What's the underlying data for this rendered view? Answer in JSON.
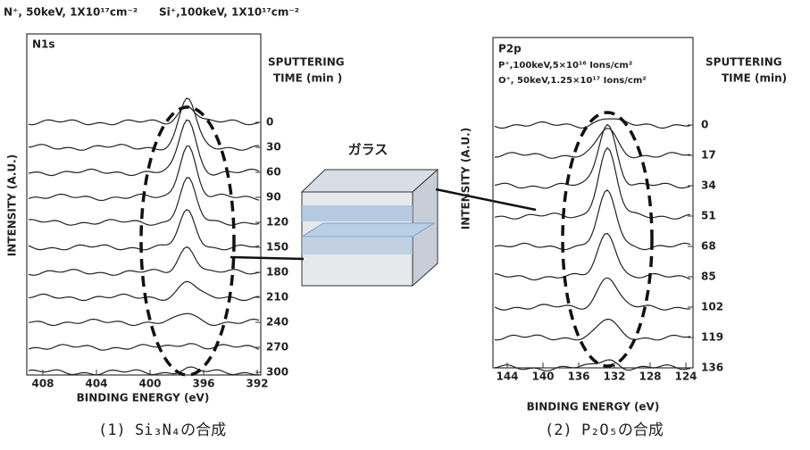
{
  "left": {
    "header": [
      "N⁺, 50keV, 1X10¹⁷cm⁻²",
      "Si⁺,100keV, 1X10¹⁷cm⁻²"
    ],
    "label": "N1s",
    "time_title": [
      "SPUTTERING",
      "TIME (min )"
    ],
    "y_label": "INTENSITY (A.U.)",
    "times": [
      "0",
      "30",
      "60",
      "90",
      "120",
      "150",
      "180",
      "210",
      "240",
      "270",
      "300"
    ],
    "x_ticks": [
      "408",
      "404",
      "400",
      "396",
      "392"
    ],
    "x_label": "BINDING ENERGY (eV)",
    "caption": "(1)  Si₃N₄の合成"
  },
  "middle": {
    "label": "ガラス"
  },
  "right": {
    "label": "P2p",
    "conditions": [
      "P⁺,100keV,5×10¹⁶ Ions/cm²",
      "O⁺, 50keV,1.25×10¹⁷ Ions/cm²"
    ],
    "time_title": [
      "SPUTTERING",
      "TIME (min)"
    ],
    "y_label": "INTENSITY (A.U.)",
    "times": [
      "0",
      "17",
      "34",
      "51",
      "68",
      "85",
      "102",
      "119",
      "136"
    ],
    "x_ticks": [
      "144",
      "140",
      "136",
      "132",
      "128",
      "124"
    ],
    "x_label": "BINDING ENERGY (eV)",
    "caption": "(2)  P₂O₅の合成"
  }
}
